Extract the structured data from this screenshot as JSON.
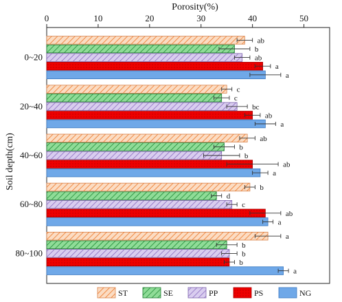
{
  "chart_data": {
    "type": "bar",
    "orientation": "horizontal",
    "xlabel": "Porosity(%)",
    "ylabel": "Soil depth(cm)",
    "xlim": [
      0,
      55
    ],
    "xticks": [
      0,
      10,
      20,
      30,
      40,
      50
    ],
    "x_axis_position": "top",
    "grid": false,
    "legend_position": "bottom",
    "categories": [
      "0~20",
      "20~40",
      "40~60",
      "60~80",
      "80~100"
    ],
    "series": [
      {
        "name": "ST",
        "color": "#f4a36b",
        "pattern": "diagonal-hatch",
        "values": [
          38.5,
          35.0,
          39.0,
          39.5,
          43.0
        ],
        "errors": [
          1.5,
          1.0,
          1.5,
          1.0,
          2.5
        ],
        "letters": [
          "ab",
          "c",
          "ab",
          "b",
          "a"
        ]
      },
      {
        "name": "SE",
        "color": "#5ac46a",
        "pattern": "diagonal-hatch",
        "values": [
          36.5,
          34.0,
          34.5,
          33.0,
          35.0
        ],
        "errors": [
          3.0,
          1.5,
          2.0,
          1.0,
          2.0
        ],
        "letters": [
          "b",
          "c",
          "b",
          "d",
          "b"
        ]
      },
      {
        "name": "PP",
        "color": "#c3aee0",
        "pattern": "diagonal-hatch",
        "values": [
          38.0,
          37.0,
          34.0,
          36.0,
          35.5
        ],
        "errors": [
          1.5,
          2.0,
          3.5,
          1.0,
          1.5
        ],
        "letters": [
          "ab",
          "bc",
          "b",
          "c",
          "b"
        ]
      },
      {
        "name": "PS",
        "color": "#ee0000",
        "pattern": "solid",
        "values": [
          42.0,
          40.0,
          40.0,
          42.5,
          35.5
        ],
        "errors": [
          1.5,
          1.5,
          5.0,
          3.0,
          1.0
        ],
        "letters": [
          "a",
          "ab",
          "ab",
          "ab",
          "b"
        ]
      },
      {
        "name": "NG",
        "color": "#6fa8e8",
        "pattern": "solid",
        "values": [
          42.5,
          42.5,
          41.5,
          43.0,
          46.0
        ],
        "errors": [
          3.0,
          2.0,
          1.5,
          1.0,
          1.0
        ],
        "letters": [
          "a",
          "a",
          "a",
          "a",
          "a"
        ]
      }
    ]
  }
}
